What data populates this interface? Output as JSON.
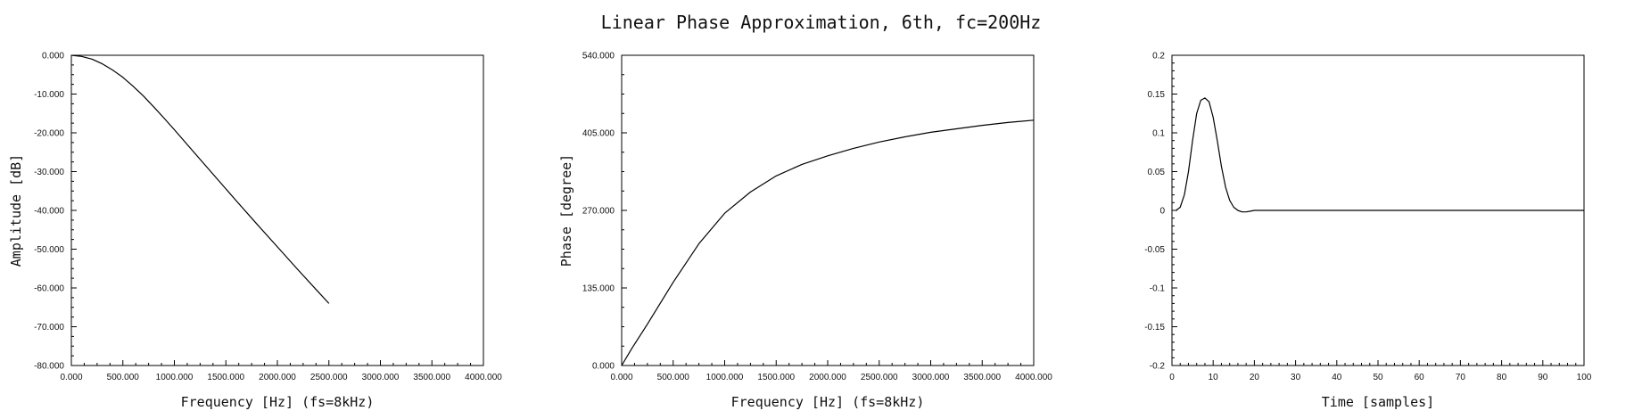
{
  "title": "Linear Phase Approximation, 6th, fc=200Hz",
  "chart_data": [
    {
      "type": "line",
      "xlabel": "Frequency [Hz] (fs=8kHz)",
      "ylabel": "Amplitude [dB]",
      "xlim": [
        0,
        4000
      ],
      "ylim": [
        -80,
        0
      ],
      "xticks": [
        "0.000",
        "500.000",
        "1000.000",
        "1500.000",
        "2000.000",
        "2500.000",
        "3000.000",
        "3500.000",
        "4000.000"
      ],
      "xtick_values": [
        0,
        500,
        1000,
        1500,
        2000,
        2500,
        3000,
        3500,
        4000
      ],
      "yticks": [
        "0.000",
        "-10.000",
        "-20.000",
        "-30.000",
        "-40.000",
        "-50.000",
        "-60.000",
        "-70.000",
        "-80.000"
      ],
      "ytick_values": [
        0,
        -10,
        -20,
        -30,
        -40,
        -50,
        -60,
        -70,
        -80
      ],
      "x": [
        0,
        100,
        200,
        300,
        400,
        500,
        600,
        700,
        800,
        900,
        1000,
        1200,
        1400,
        1600,
        1800,
        2000,
        2200,
        2400,
        2500
      ],
      "y": [
        0,
        -0.3,
        -1.0,
        -2.2,
        -3.8,
        -5.7,
        -8.0,
        -10.5,
        -13.3,
        -16.2,
        -19.2,
        -25.3,
        -31.4,
        -37.5,
        -43.5,
        -49.4,
        -55.3,
        -61.1,
        -64.0
      ]
    },
    {
      "type": "line",
      "xlabel": "Frequency [Hz] (fs=8kHz)",
      "ylabel": "Phase [degree]",
      "xlim": [
        0,
        4000
      ],
      "ylim": [
        0,
        540
      ],
      "xticks": [
        "0.000",
        "500.000",
        "1000.000",
        "1500.000",
        "2000.000",
        "2500.000",
        "3000.000",
        "3500.000",
        "4000.000"
      ],
      "xtick_values": [
        0,
        500,
        1000,
        1500,
        2000,
        2500,
        3000,
        3500,
        4000
      ],
      "yticks": [
        "0.000",
        "135.000",
        "270.000",
        "405.000",
        "540.000"
      ],
      "ytick_values": [
        0,
        135,
        270,
        405,
        540
      ],
      "x": [
        0,
        100,
        250,
        500,
        750,
        1000,
        1250,
        1500,
        1750,
        2000,
        2250,
        2500,
        2750,
        3000,
        3250,
        3500,
        3750,
        4000
      ],
      "y": [
        0,
        30,
        72,
        145,
        212,
        265,
        302,
        330,
        350,
        365,
        378,
        389,
        398,
        406,
        412,
        418,
        423,
        427
      ]
    },
    {
      "type": "line",
      "xlabel": "Time [samples]",
      "ylabel": "",
      "xlim": [
        0,
        100
      ],
      "ylim": [
        -0.2,
        0.2
      ],
      "xticks": [
        "0",
        "10",
        "20",
        "30",
        "40",
        "50",
        "60",
        "70",
        "80",
        "90",
        "100"
      ],
      "xtick_values": [
        0,
        10,
        20,
        30,
        40,
        50,
        60,
        70,
        80,
        90,
        100
      ],
      "yticks": [
        "0.2",
        "0.15",
        "0.1",
        "0.05",
        "0",
        "-0.05",
        "-0.1",
        "-0.15",
        "-0.2"
      ],
      "ytick_values": [
        0.2,
        0.15,
        0.1,
        0.05,
        0,
        -0.05,
        -0.1,
        -0.15,
        -0.2
      ],
      "x": [
        1,
        2,
        3,
        4,
        5,
        6,
        7,
        8,
        9,
        10,
        11,
        12,
        13,
        14,
        15,
        16,
        17,
        18,
        19,
        20,
        22,
        30,
        40,
        50,
        60,
        70,
        80,
        90,
        100
      ],
      "y": [
        0,
        0.004,
        0.02,
        0.05,
        0.09,
        0.125,
        0.142,
        0.145,
        0.14,
        0.12,
        0.09,
        0.057,
        0.03,
        0.013,
        0.004,
        0.0,
        -0.002,
        -0.002,
        -0.001,
        0,
        0,
        0,
        0,
        0,
        0,
        0,
        0,
        0,
        0
      ]
    }
  ]
}
